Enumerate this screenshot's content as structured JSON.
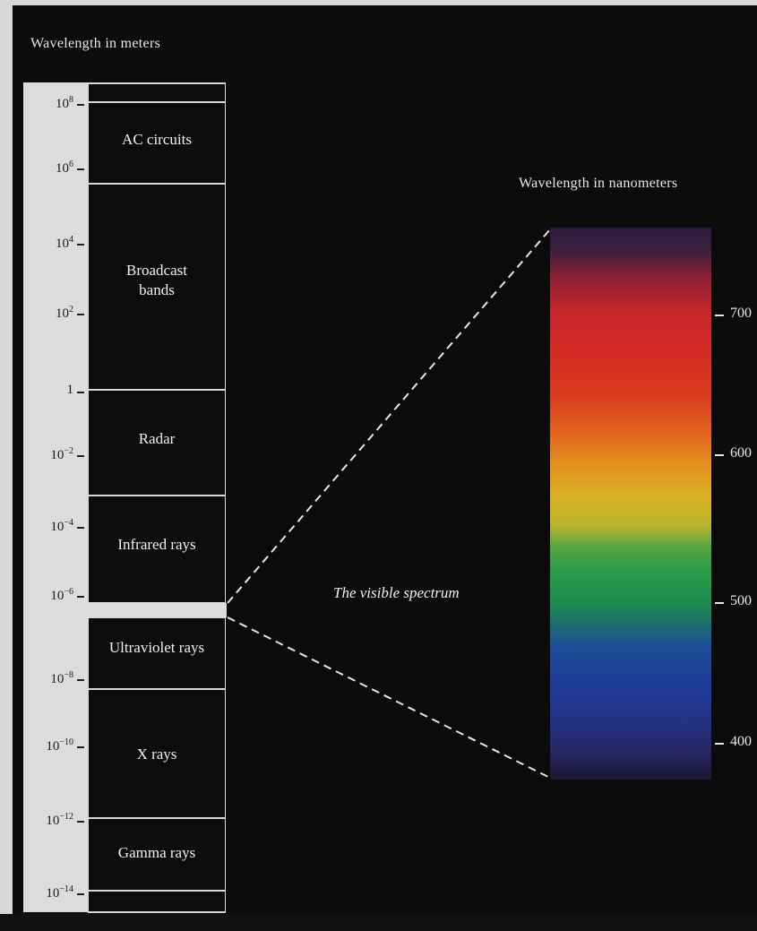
{
  "left_title": "Wavelength in meters",
  "right_title": "Wavelength in nanometers",
  "caption": "The visible spectrum",
  "scale_ticks": [
    {
      "base": "10",
      "exp": "8"
    },
    {
      "base": "10",
      "exp": "6"
    },
    {
      "base": "10",
      "exp": "4"
    },
    {
      "base": "10",
      "exp": "2"
    },
    {
      "base": "1",
      "exp": ""
    },
    {
      "base": "10",
      "exp": "−2"
    },
    {
      "base": "10",
      "exp": "−4"
    },
    {
      "base": "10",
      "exp": "−6"
    },
    {
      "base": "10",
      "exp": "−8"
    },
    {
      "base": "10",
      "exp": "−10"
    },
    {
      "base": "10",
      "exp": "−12"
    },
    {
      "base": "10",
      "exp": "−14"
    }
  ],
  "bands": [
    {
      "label": "AC circuits"
    },
    {
      "label": "Broadcast bands"
    },
    {
      "label": "Radar"
    },
    {
      "label": "Infrared rays"
    },
    {
      "label": "Ultraviolet rays"
    },
    {
      "label": "X rays"
    },
    {
      "label": "Gamma rays"
    }
  ],
  "nm_ticks": [
    "700",
    "600",
    "500",
    "400"
  ],
  "spectrum_colors": [
    "#2a1b3d",
    "#c4262a",
    "#e0621e",
    "#d9b224",
    "#2a9c48",
    "#1d4c95",
    "#1c1735"
  ]
}
